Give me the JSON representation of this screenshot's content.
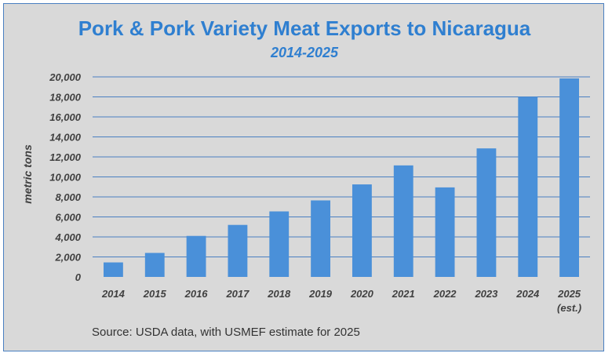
{
  "chart_data": {
    "type": "bar",
    "title": "Pork & Pork Variety Meat Exports to Nicaragua",
    "subtitle": "2014-2025",
    "ylabel": "metric tons",
    "xlabel": "",
    "source": "Source: USDA data, with USMEF estimate for 2025",
    "categories": [
      "2014",
      "2015",
      "2016",
      "2017",
      "2018",
      "2019",
      "2020",
      "2021",
      "2022",
      "2023",
      "2024",
      "2025"
    ],
    "category_sublabels": [
      "",
      "",
      "",
      "",
      "",
      "",
      "",
      "",
      "",
      "",
      "",
      "(est.)"
    ],
    "values": [
      1450,
      2400,
      4100,
      5200,
      6550,
      7650,
      9250,
      11150,
      8950,
      12850,
      18000,
      19850
    ],
    "ylim": [
      0,
      20000
    ],
    "yticks": [
      0,
      2000,
      4000,
      6000,
      8000,
      10000,
      12000,
      14000,
      16000,
      18000,
      20000
    ],
    "ytick_labels": [
      "0",
      "2,000",
      "4,000",
      "6,000",
      "8,000",
      "10,000",
      "12,000",
      "14,000",
      "16,000",
      "18,000",
      "20,000"
    ],
    "grid": true,
    "bar_color": "#4a90d9",
    "grid_color": "#4a7fc1",
    "title_color": "#2f7fd0"
  }
}
